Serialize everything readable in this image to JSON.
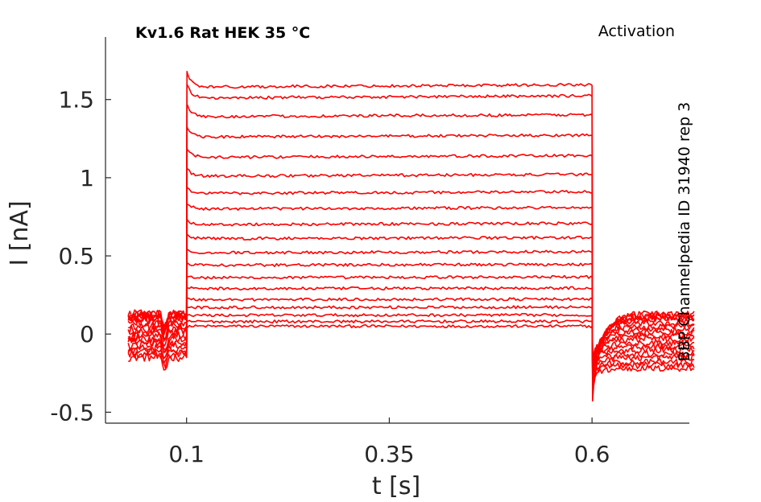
{
  "chart_data": {
    "type": "line",
    "title": "Kv1.6  Rat  HEK  35 °C",
    "corner_label": "Activation",
    "side_label": "BBP Channelpedia ID 31940 rep 3",
    "xlabel": "t [s]",
    "ylabel": "I [nA]",
    "xlim": [
      0.0,
      0.72
    ],
    "ylim": [
      -0.57,
      1.9
    ],
    "x_ticks": [
      {
        "value": 0.1,
        "label": "0.1"
      },
      {
        "value": 0.35,
        "label": "0.35"
      },
      {
        "value": 0.6,
        "label": "0.6"
      }
    ],
    "y_ticks": [
      {
        "value": -0.5,
        "label": "-0.5"
      },
      {
        "value": 0,
        "label": "0"
      },
      {
        "value": 0.5,
        "label": "0.5"
      },
      {
        "value": 1,
        "label": "1"
      },
      {
        "value": 1.5,
        "label": "1.5"
      }
    ],
    "series_color": "#ff0000",
    "grid": false,
    "legend": "none",
    "pulse_start": 0.1,
    "pulse_end": 0.6,
    "sweep_start": 0.028,
    "sweep_end": 0.728,
    "steady_currents": [
      0.05,
      0.08,
      0.12,
      0.17,
      0.22,
      0.29,
      0.36,
      0.44,
      0.52,
      0.61,
      0.7,
      0.8,
      0.9,
      1.01,
      1.13,
      1.26,
      1.39,
      1.51,
      1.58
    ],
    "baseline_currents": [
      -0.15,
      -0.13,
      -0.11,
      -0.09,
      -0.07,
      -0.05,
      -0.03,
      -0.01,
      0.01,
      0.03,
      0.05,
      0.07,
      0.09,
      0.1,
      0.11,
      0.12,
      0.12,
      0.13,
      0.13
    ],
    "tail_currents": [
      -0.22,
      -0.2,
      -0.18,
      -0.15,
      -0.13,
      -0.1,
      -0.08,
      -0.06,
      -0.03,
      -0.01,
      0.01,
      0.03,
      0.05,
      0.07,
      0.09,
      0.1,
      0.11,
      0.12,
      0.13
    ],
    "peak_current": 1.68,
    "tail_minimum": -0.49
  }
}
